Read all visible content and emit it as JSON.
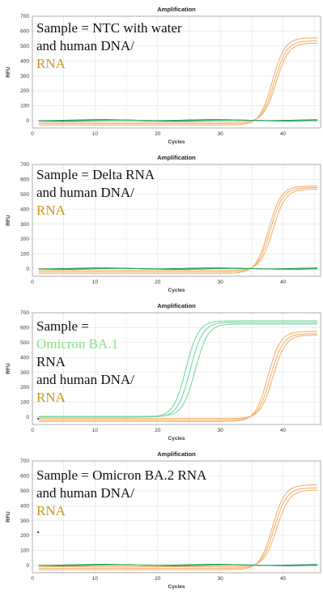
{
  "colors": {
    "human": "#f4b26e",
    "omicron": "#74d9a4",
    "baseline_green": "#2fa060",
    "hl_orange": "#c9961a",
    "hl_green": "#7fe37f"
  },
  "chart_data": [
    {
      "type": "line",
      "title": "Amplification",
      "xlabel": "Cycles",
      "ylabel": "RFU",
      "xlim": [
        0,
        46
      ],
      "ylim": [
        -50,
        700
      ],
      "xticks": [
        "0",
        "10",
        "20",
        "30",
        "40"
      ],
      "yticks": [
        "0",
        "100",
        "200",
        "300",
        "400",
        "500",
        "600",
        "700"
      ],
      "grid": true,
      "annotation": {
        "line1_a": "Sample = NTC with water",
        "line1_hl": "",
        "line1_b": "",
        "line2_a": "and human DNA/",
        "line2_hl": "RNA",
        "line2_b": ""
      },
      "series": [
        {
          "color": "human",
          "shape": "sigmoid",
          "baseline": -30,
          "plateau": 555,
          "midpoint": 38.3,
          "slope": 1.0
        },
        {
          "color": "human",
          "shape": "sigmoid",
          "baseline": -20,
          "plateau": 535,
          "midpoint": 38.6,
          "slope": 1.0
        },
        {
          "color": "human",
          "shape": "sigmoid",
          "baseline": -10,
          "plateau": 520,
          "midpoint": 38.9,
          "slope": 1.0
        },
        {
          "color": "baseline_green",
          "shape": "flat",
          "baseline": 0
        },
        {
          "color": "baseline_green",
          "shape": "flat",
          "baseline": 3
        }
      ]
    },
    {
      "type": "line",
      "title": "Amplification",
      "xlabel": "Cycles",
      "ylabel": "RFU",
      "xlim": [
        0,
        46
      ],
      "ylim": [
        -50,
        700
      ],
      "xticks": [
        "0",
        "10",
        "20",
        "30",
        "40"
      ],
      "yticks": [
        "0",
        "100",
        "200",
        "300",
        "400",
        "500",
        "600",
        "700"
      ],
      "grid": true,
      "annotation": {
        "line1_a": "Sample = Delta RNA",
        "line1_hl": "",
        "line1_b": "",
        "line2_a": "and human DNA/",
        "line2_hl": "RNA",
        "line2_b": ""
      },
      "series": [
        {
          "color": "human",
          "shape": "sigmoid",
          "baseline": -30,
          "plateau": 555,
          "midpoint": 37.7,
          "slope": 1.0
        },
        {
          "color": "human",
          "shape": "sigmoid",
          "baseline": -20,
          "plateau": 545,
          "midpoint": 38.0,
          "slope": 1.0
        },
        {
          "color": "human",
          "shape": "sigmoid",
          "baseline": -10,
          "plateau": 535,
          "midpoint": 38.4,
          "slope": 1.0
        },
        {
          "color": "baseline_green",
          "shape": "flat",
          "baseline": 0
        },
        {
          "color": "baseline_green",
          "shape": "flat",
          "baseline": 3
        }
      ]
    },
    {
      "type": "line",
      "title": "Amplification",
      "xlabel": "Cycles",
      "ylabel": "RFU",
      "xlim": [
        0,
        46
      ],
      "ylim": [
        -50,
        700
      ],
      "xticks": [
        "0",
        "10",
        "20",
        "30",
        "40"
      ],
      "yticks": [
        "0",
        "100",
        "200",
        "300",
        "400",
        "500",
        "600",
        "700"
      ],
      "grid": true,
      "annotation": {
        "line1_a": "Sample = ",
        "line1_hl": "Omicron BA.1",
        "line1_b": " RNA",
        "line2_a": "and human DNA/",
        "line2_hl": "RNA",
        "line2_b": "."
      },
      "series": [
        {
          "color": "omicron",
          "shape": "sigmoid",
          "baseline": 0,
          "plateau": 645,
          "midpoint": 24.5,
          "slope": 1.0
        },
        {
          "color": "omicron",
          "shape": "sigmoid",
          "baseline": 0,
          "plateau": 635,
          "midpoint": 25.2,
          "slope": 1.0
        },
        {
          "color": "omicron",
          "shape": "sigmoid",
          "baseline": 5,
          "plateau": 625,
          "midpoint": 26.0,
          "slope": 1.0
        },
        {
          "color": "human",
          "shape": "sigmoid",
          "baseline": -30,
          "plateau": 575,
          "midpoint": 37.6,
          "slope": 1.0
        },
        {
          "color": "human",
          "shape": "sigmoid",
          "baseline": -20,
          "plateau": 560,
          "midpoint": 38.0,
          "slope": 1.0
        },
        {
          "color": "human",
          "shape": "sigmoid",
          "baseline": -10,
          "plateau": 550,
          "midpoint": 38.4,
          "slope": 1.0
        }
      ]
    },
    {
      "type": "line",
      "title": "Amplification",
      "xlabel": "Cycles",
      "ylabel": "RFU",
      "xlim": [
        0,
        46
      ],
      "ylim": [
        -50,
        700
      ],
      "xticks": [
        "0",
        "10",
        "20",
        "30",
        "40"
      ],
      "yticks": [
        "0",
        "100",
        "200",
        "300",
        "400",
        "500",
        "600",
        "700"
      ],
      "grid": true,
      "annotation": {
        "line1_a": "Sample = Omicron BA.2 RNA",
        "line1_hl": "",
        "line1_b": "",
        "line2_a": "and human DNA/",
        "line2_hl": "RNA",
        "line2_b": "."
      },
      "series": [
        {
          "color": "human",
          "shape": "sigmoid",
          "baseline": -30,
          "plateau": 540,
          "midpoint": 38.3,
          "slope": 1.0
        },
        {
          "color": "human",
          "shape": "sigmoid",
          "baseline": -20,
          "plateau": 520,
          "midpoint": 38.6,
          "slope": 1.0
        },
        {
          "color": "human",
          "shape": "sigmoid",
          "baseline": -10,
          "plateau": 505,
          "midpoint": 39.0,
          "slope": 1.0
        },
        {
          "color": "baseline_green",
          "shape": "flat",
          "baseline": 0
        },
        {
          "color": "baseline_green",
          "shape": "flat",
          "baseline": 3
        }
      ]
    }
  ]
}
